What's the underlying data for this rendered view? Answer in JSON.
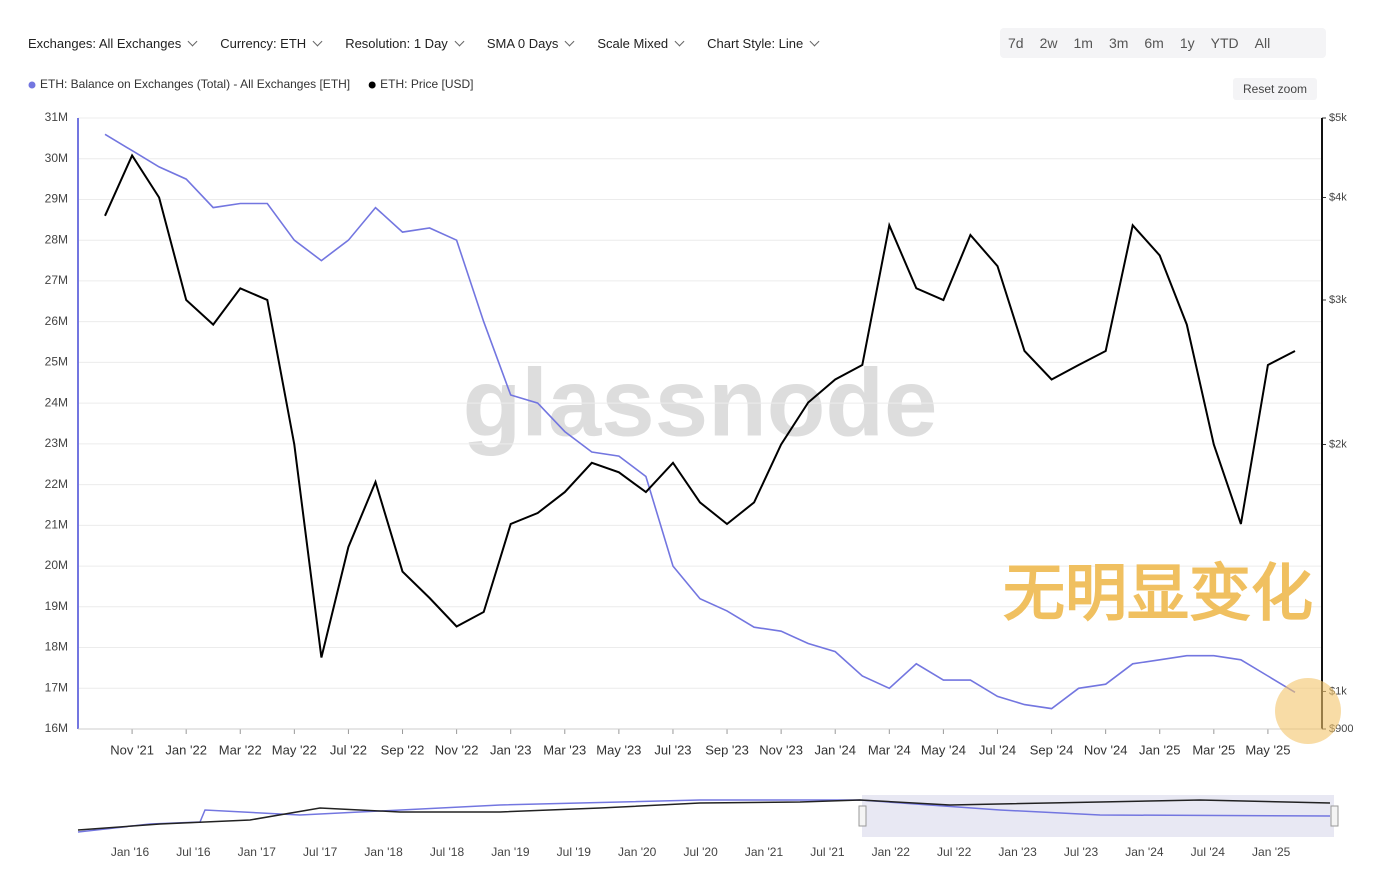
{
  "toolbar": {
    "filters": [
      "Exchanges: All Exchanges",
      "Currency: ETH",
      "Resolution: 1 Day",
      "SMA 0 Days",
      "Scale Mixed",
      "Chart Style: Line"
    ],
    "ranges": [
      "7d",
      "2w",
      "1m",
      "3m",
      "6m",
      "1y",
      "YTD",
      "All"
    ],
    "reset": "Reset zoom"
  },
  "watermark": "glassnode",
  "annotation": "无明显变化",
  "navigator_labels": [
    "Jan '16",
    "Jul '16",
    "Jan '17",
    "Jul '17",
    "Jan '18",
    "Jul '18",
    "Jan '19",
    "Jul '19",
    "Jan '20",
    "Jul '20",
    "Jan '21",
    "Jul '21",
    "Jan '22",
    "Jul '22",
    "Jan '23",
    "Jul '23",
    "Jan '24",
    "Jul '24",
    "Jan '25"
  ],
  "chart_data": {
    "type": "line",
    "x": [
      "2021-10",
      "2021-11",
      "2021-12",
      "2022-01",
      "2022-02",
      "2022-03",
      "2022-04",
      "2022-05",
      "2022-06",
      "2022-07",
      "2022-08",
      "2022-09",
      "2022-10",
      "2022-11",
      "2022-12",
      "2023-01",
      "2023-02",
      "2023-03",
      "2023-04",
      "2023-05",
      "2023-06",
      "2023-07",
      "2023-08",
      "2023-09",
      "2023-10",
      "2023-11",
      "2023-12",
      "2024-01",
      "2024-02",
      "2024-03",
      "2024-04",
      "2024-05",
      "2024-06",
      "2024-07",
      "2024-08",
      "2024-09",
      "2024-10",
      "2024-11",
      "2024-12",
      "2025-01",
      "2025-02",
      "2025-03",
      "2025-04",
      "2025-05",
      "2025-06"
    ],
    "xlim": [
      "2021-09",
      "2025-07"
    ],
    "xticks": [
      {
        "value": "2021-11",
        "label": "Nov '21"
      },
      {
        "value": "2022-01",
        "label": "Jan '22"
      },
      {
        "value": "2022-03",
        "label": "Mar '22"
      },
      {
        "value": "2022-05",
        "label": "May '22"
      },
      {
        "value": "2022-07",
        "label": "Jul '22"
      },
      {
        "value": "2022-09",
        "label": "Sep '22"
      },
      {
        "value": "2022-11",
        "label": "Nov '22"
      },
      {
        "value": "2023-01",
        "label": "Jan '23"
      },
      {
        "value": "2023-03",
        "label": "Mar '23"
      },
      {
        "value": "2023-05",
        "label": "May '23"
      },
      {
        "value": "2023-07",
        "label": "Jul '23"
      },
      {
        "value": "2023-09",
        "label": "Sep '23"
      },
      {
        "value": "2023-11",
        "label": "Nov '23"
      },
      {
        "value": "2024-01",
        "label": "Jan '24"
      },
      {
        "value": "2024-03",
        "label": "Mar '24"
      },
      {
        "value": "2024-05",
        "label": "May '24"
      },
      {
        "value": "2024-07",
        "label": "Jul '24"
      },
      {
        "value": "2024-09",
        "label": "Sep '24"
      },
      {
        "value": "2024-11",
        "label": "Nov '24"
      },
      {
        "value": "2025-01",
        "label": "Jan '25"
      },
      {
        "value": "2025-03",
        "label": "Mar '25"
      },
      {
        "value": "2025-05",
        "label": "May '25"
      }
    ],
    "ylim": [
      16000000,
      31000000
    ],
    "yticks": [
      {
        "value": 16000000,
        "label": "16M"
      },
      {
        "value": 17000000,
        "label": "17M"
      },
      {
        "value": 18000000,
        "label": "18M"
      },
      {
        "value": 19000000,
        "label": "19M"
      },
      {
        "value": 20000000,
        "label": "20M"
      },
      {
        "value": 21000000,
        "label": "21M"
      },
      {
        "value": 22000000,
        "label": "22M"
      },
      {
        "value": 23000000,
        "label": "23M"
      },
      {
        "value": 24000000,
        "label": "24M"
      },
      {
        "value": 25000000,
        "label": "25M"
      },
      {
        "value": 26000000,
        "label": "26M"
      },
      {
        "value": 27000000,
        "label": "27M"
      },
      {
        "value": 28000000,
        "label": "28M"
      },
      {
        "value": 29000000,
        "label": "29M"
      },
      {
        "value": 30000000,
        "label": "30M"
      },
      {
        "value": 31000000,
        "label": "31M"
      }
    ],
    "y2lim": [
      900,
      5000
    ],
    "y2scale": "log",
    "y2ticks": [
      {
        "value": 900,
        "label": "$900"
      },
      {
        "value": 1000,
        "label": "$1k"
      },
      {
        "value": 2000,
        "label": "$2k"
      },
      {
        "value": 3000,
        "label": "$3k"
      },
      {
        "value": 4000,
        "label": "$4k"
      },
      {
        "value": 5000,
        "label": "$5k"
      }
    ],
    "grid": true,
    "series": [
      {
        "name": "ETH: Balance on Exchanges (Total) - All Exchanges [ETH]",
        "color": "#7376e0",
        "axis": "y",
        "values": [
          30600000,
          30200000,
          29800000,
          29500000,
          28800000,
          28900000,
          28900000,
          28000000,
          27500000,
          28000000,
          28800000,
          28200000,
          28300000,
          28000000,
          26000000,
          24200000,
          24000000,
          23300000,
          22800000,
          22700000,
          22200000,
          20000000,
          19200000,
          18900000,
          18500000,
          18400000,
          18100000,
          17900000,
          17300000,
          17000000,
          17600000,
          17200000,
          17200000,
          16800000,
          16600000,
          16500000,
          17000000,
          17100000,
          17600000,
          17700000,
          17800000,
          17800000,
          17700000,
          17300000,
          16900000
        ]
      },
      {
        "name": "ETH: Price [USD]",
        "color": "#000000",
        "axis": "y2",
        "values": [
          3800,
          4500,
          4000,
          3000,
          2800,
          3100,
          3000,
          2000,
          1100,
          1500,
          1800,
          1400,
          1300,
          1200,
          1250,
          1600,
          1650,
          1750,
          1900,
          1850,
          1750,
          1900,
          1700,
          1600,
          1700,
          2000,
          2250,
          2400,
          2500,
          3700,
          3100,
          3000,
          3600,
          3300,
          2600,
          2400,
          2500,
          2600,
          3700,
          3400,
          2800,
          2000,
          1600,
          2500,
          2600
        ]
      }
    ]
  }
}
